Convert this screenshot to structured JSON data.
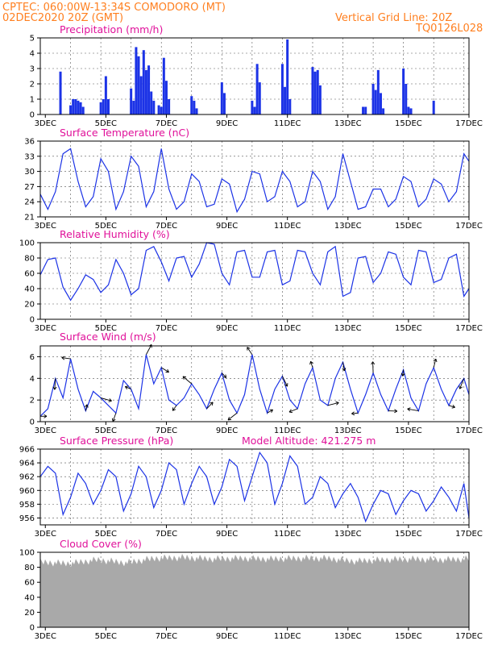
{
  "header": {
    "line1": "CPTEC:   060:00W-13:34S   COMODORO (MT)",
    "line2": "02DEC2020 20Z (GMT)",
    "right1": "Vertical Grid Line: 20Z",
    "right2": "TQ0126L028"
  },
  "colors": {
    "header": "#ff7f1f",
    "title": "#e0119a",
    "series": "#1c33e6",
    "cloud": "#a9a9a9"
  },
  "x_axis": {
    "start": "02DEC2020 20Z",
    "end": "17DEC2020 00Z",
    "tick_labels": [
      "3DEC",
      "5DEC",
      "7DEC",
      "9DEC",
      "11DEC",
      "13DEC",
      "15DEC",
      "17DEC"
    ]
  },
  "chart_data": [
    {
      "type": "bar",
      "title": "Precipitation (mm/h)",
      "ylim": [
        0,
        5
      ],
      "yticks": [
        0,
        1,
        2,
        3,
        4,
        5
      ],
      "x": [
        "03DEC 12Z",
        "03DEC 20Z",
        "03DEC 22Z",
        "04DEC 00Z",
        "04DEC 02Z",
        "04DEC 04Z",
        "04DEC 06Z",
        "04DEC 20Z",
        "04DEC 22Z",
        "05DEC 00Z",
        "05DEC 02Z",
        "05DEC 20Z",
        "05DEC 22Z",
        "06DEC 00Z",
        "06DEC 02Z",
        "06DEC 04Z",
        "06DEC 06Z",
        "06DEC 08Z",
        "06DEC 10Z",
        "06DEC 12Z",
        "06DEC 14Z",
        "06DEC 18Z",
        "06DEC 20Z",
        "06DEC 22Z",
        "07DEC 00Z",
        "07DEC 02Z",
        "07DEC 20Z",
        "07DEC 22Z",
        "08DEC 00Z",
        "08DEC 20Z",
        "08DEC 22Z",
        "09DEC 20Z",
        "09DEC 22Z",
        "10DEC 00Z",
        "10DEC 02Z",
        "10DEC 20Z",
        "10DEC 22Z",
        "11DEC 00Z",
        "11DEC 02Z",
        "11DEC 20Z",
        "11DEC 22Z",
        "12DEC 00Z",
        "12DEC 02Z",
        "13DEC 12Z",
        "13DEC 14Z",
        "13DEC 20Z",
        "13DEC 22Z",
        "14DEC 00Z",
        "14DEC 02Z",
        "14DEC 04Z",
        "14DEC 20Z",
        "14DEC 22Z",
        "15DEC 00Z",
        "15DEC 02Z",
        "15DEC 20Z"
      ],
      "values": [
        2.8,
        0.6,
        1.0,
        1.0,
        0.9,
        0.8,
        0.5,
        0.8,
        1.0,
        2.5,
        1.0,
        1.7,
        0.9,
        4.4,
        3.8,
        2.5,
        4.2,
        2.9,
        3.2,
        1.5,
        0.9,
        0.6,
        0.5,
        3.7,
        2.2,
        1.0,
        1.2,
        0.9,
        0.4,
        2.1,
        1.4,
        0.9,
        0.5,
        3.3,
        2.1,
        3.3,
        1.8,
        4.9,
        1.0,
        3.1,
        2.8,
        2.9,
        1.9,
        0.5,
        0.5,
        2.0,
        1.6,
        2.9,
        1.4,
        0.4,
        3.0,
        2.0,
        0.5,
        0.4,
        0.9
      ]
    },
    {
      "type": "line",
      "title": "Surface Temperature (nC)",
      "ylim": [
        21,
        36
      ],
      "yticks": [
        21,
        24,
        27,
        30,
        33,
        36
      ],
      "x": [
        "02DEC 20Z",
        "03DEC 02Z",
        "03DEC 08Z",
        "03DEC 14Z",
        "03DEC 20Z",
        "04DEC 02Z",
        "04DEC 08Z",
        "04DEC 14Z",
        "04DEC 20Z",
        "05DEC 02Z",
        "05DEC 08Z",
        "05DEC 14Z",
        "05DEC 20Z",
        "06DEC 02Z",
        "06DEC 08Z",
        "06DEC 14Z",
        "06DEC 20Z",
        "07DEC 02Z",
        "07DEC 08Z",
        "07DEC 14Z",
        "07DEC 20Z",
        "08DEC 02Z",
        "08DEC 08Z",
        "08DEC 14Z",
        "08DEC 20Z",
        "09DEC 02Z",
        "09DEC 08Z",
        "09DEC 14Z",
        "09DEC 20Z",
        "10DEC 02Z",
        "10DEC 08Z",
        "10DEC 14Z",
        "10DEC 20Z",
        "11DEC 02Z",
        "11DEC 08Z",
        "11DEC 14Z",
        "11DEC 20Z",
        "12DEC 02Z",
        "12DEC 08Z",
        "12DEC 14Z",
        "12DEC 20Z",
        "13DEC 02Z",
        "13DEC 08Z",
        "13DEC 14Z",
        "13DEC 20Z",
        "14DEC 02Z",
        "14DEC 08Z",
        "14DEC 14Z",
        "14DEC 20Z",
        "15DEC 02Z",
        "15DEC 08Z",
        "15DEC 14Z",
        "15DEC 20Z",
        "16DEC 02Z",
        "16DEC 08Z",
        "16DEC 14Z",
        "16DEC 20Z",
        "17DEC 00Z"
      ],
      "values": [
        25.5,
        22.5,
        26,
        33.5,
        34.5,
        28,
        23,
        25,
        32.5,
        30,
        22.5,
        26,
        33,
        31,
        23,
        26,
        34.5,
        26.5,
        22.5,
        24,
        29.5,
        28,
        23,
        23.5,
        28.5,
        27.5,
        22,
        24.5,
        30,
        29.5,
        24,
        25,
        30,
        28,
        23,
        24,
        30,
        28,
        22.5,
        25,
        33.5,
        28,
        22.5,
        23,
        26.5,
        26.5,
        23,
        24.5,
        29,
        28,
        23,
        24.5,
        28.5,
        27.5,
        24,
        26,
        33.5,
        32
      ]
    },
    {
      "type": "line",
      "title": "Relative Humidity (%)",
      "ylim": [
        0,
        100
      ],
      "yticks": [
        0,
        20,
        40,
        60,
        80,
        100
      ],
      "x": [
        "02DEC 20Z",
        "03DEC 02Z",
        "03DEC 08Z",
        "03DEC 14Z",
        "03DEC 20Z",
        "04DEC 02Z",
        "04DEC 08Z",
        "04DEC 14Z",
        "04DEC 20Z",
        "05DEC 02Z",
        "05DEC 08Z",
        "05DEC 14Z",
        "05DEC 20Z",
        "06DEC 02Z",
        "06DEC 08Z",
        "06DEC 14Z",
        "06DEC 20Z",
        "07DEC 02Z",
        "07DEC 08Z",
        "07DEC 14Z",
        "07DEC 20Z",
        "08DEC 02Z",
        "08DEC 08Z",
        "08DEC 14Z",
        "08DEC 20Z",
        "09DEC 02Z",
        "09DEC 08Z",
        "09DEC 14Z",
        "09DEC 20Z",
        "10DEC 02Z",
        "10DEC 08Z",
        "10DEC 14Z",
        "10DEC 20Z",
        "11DEC 02Z",
        "11DEC 08Z",
        "11DEC 14Z",
        "11DEC 20Z",
        "12DEC 02Z",
        "12DEC 08Z",
        "12DEC 14Z",
        "12DEC 20Z",
        "13DEC 02Z",
        "13DEC 08Z",
        "13DEC 14Z",
        "13DEC 20Z",
        "14DEC 02Z",
        "14DEC 08Z",
        "14DEC 14Z",
        "14DEC 20Z",
        "15DEC 02Z",
        "15DEC 08Z",
        "15DEC 14Z",
        "15DEC 20Z",
        "16DEC 02Z",
        "16DEC 08Z",
        "16DEC 14Z",
        "16DEC 20Z",
        "17DEC 00Z"
      ],
      "values": [
        58,
        78,
        80,
        42,
        25,
        40,
        58,
        52,
        35,
        45,
        78,
        60,
        32,
        40,
        90,
        95,
        75,
        50,
        80,
        82,
        55,
        72,
        100,
        98,
        60,
        45,
        88,
        90,
        55,
        55,
        88,
        90,
        45,
        50,
        90,
        88,
        60,
        45,
        88,
        95,
        30,
        35,
        80,
        82,
        48,
        60,
        88,
        85,
        55,
        45,
        90,
        88,
        48,
        52,
        80,
        85,
        30,
        40
      ]
    },
    {
      "type": "line",
      "title": "Surface Wind (m/s)",
      "ylim": [
        0,
        7
      ],
      "yticks": [
        0,
        2,
        4,
        6
      ],
      "x": [
        "02DEC 20Z",
        "03DEC 02Z",
        "03DEC 08Z",
        "03DEC 14Z",
        "03DEC 20Z",
        "04DEC 02Z",
        "04DEC 08Z",
        "04DEC 14Z",
        "04DEC 20Z",
        "05DEC 02Z",
        "05DEC 08Z",
        "05DEC 14Z",
        "05DEC 20Z",
        "06DEC 02Z",
        "06DEC 08Z",
        "06DEC 14Z",
        "06DEC 20Z",
        "07DEC 02Z",
        "07DEC 08Z",
        "07DEC 14Z",
        "07DEC 20Z",
        "08DEC 02Z",
        "08DEC 08Z",
        "08DEC 14Z",
        "08DEC 20Z",
        "09DEC 02Z",
        "09DEC 08Z",
        "09DEC 14Z",
        "09DEC 20Z",
        "10DEC 02Z",
        "10DEC 08Z",
        "10DEC 14Z",
        "10DEC 20Z",
        "11DEC 02Z",
        "11DEC 08Z",
        "11DEC 14Z",
        "11DEC 20Z",
        "12DEC 02Z",
        "12DEC 08Z",
        "12DEC 14Z",
        "12DEC 20Z",
        "13DEC 02Z",
        "13DEC 08Z",
        "13DEC 14Z",
        "13DEC 20Z",
        "14DEC 02Z",
        "14DEC 08Z",
        "14DEC 14Z",
        "14DEC 20Z",
        "15DEC 02Z",
        "15DEC 08Z",
        "15DEC 14Z",
        "15DEC 20Z",
        "16DEC 02Z",
        "16DEC 08Z",
        "16DEC 14Z",
        "16DEC 20Z",
        "17DEC 00Z"
      ],
      "values": [
        0.5,
        1.2,
        4.0,
        2.2,
        5.8,
        3.0,
        1.0,
        2.8,
        2.2,
        1.5,
        0.8,
        3.8,
        3.0,
        1.2,
        6.2,
        3.5,
        5.0,
        2.0,
        1.5,
        2.2,
        3.5,
        2.5,
        1.2,
        3.0,
        4.5,
        2.0,
        0.8,
        2.5,
        6.2,
        3.0,
        0.8,
        3.0,
        4.2,
        2.0,
        1.2,
        3.5,
        5.0,
        2.0,
        1.5,
        4.0,
        5.5,
        3.0,
        0.8,
        2.5,
        4.5,
        2.5,
        1.0,
        3.0,
        4.8,
        2.2,
        1.0,
        3.5,
        5.0,
        3.0,
        1.5,
        3.0,
        4.0,
        2.5
      ],
      "arrows": "direction arrows shown at each sample"
    },
    {
      "type": "line",
      "title": "Surface Pressure (hPa)",
      "subtitle": "Model Altitude: 421.275 m",
      "ylim": [
        955,
        966
      ],
      "yticks": [
        956,
        958,
        960,
        962,
        964,
        966
      ],
      "x": [
        "02DEC 20Z",
        "03DEC 02Z",
        "03DEC 08Z",
        "03DEC 14Z",
        "03DEC 20Z",
        "04DEC 02Z",
        "04DEC 08Z",
        "04DEC 14Z",
        "04DEC 20Z",
        "05DEC 02Z",
        "05DEC 08Z",
        "05DEC 14Z",
        "05DEC 20Z",
        "06DEC 02Z",
        "06DEC 08Z",
        "06DEC 14Z",
        "06DEC 20Z",
        "07DEC 02Z",
        "07DEC 08Z",
        "07DEC 14Z",
        "07DEC 20Z",
        "08DEC 02Z",
        "08DEC 08Z",
        "08DEC 14Z",
        "08DEC 20Z",
        "09DEC 02Z",
        "09DEC 08Z",
        "09DEC 14Z",
        "09DEC 20Z",
        "10DEC 02Z",
        "10DEC 08Z",
        "10DEC 14Z",
        "10DEC 20Z",
        "11DEC 02Z",
        "11DEC 08Z",
        "11DEC 14Z",
        "11DEC 20Z",
        "12DEC 02Z",
        "12DEC 08Z",
        "12DEC 14Z",
        "12DEC 20Z",
        "13DEC 02Z",
        "13DEC 08Z",
        "13DEC 14Z",
        "13DEC 20Z",
        "14DEC 02Z",
        "14DEC 08Z",
        "14DEC 14Z",
        "14DEC 20Z",
        "15DEC 02Z",
        "15DEC 08Z",
        "15DEC 14Z",
        "15DEC 20Z",
        "16DEC 02Z",
        "16DEC 08Z",
        "16DEC 14Z",
        "16DEC 20Z",
        "17DEC 00Z"
      ],
      "values": [
        962,
        963.5,
        962.5,
        956.5,
        959,
        962.5,
        961,
        958,
        960,
        963,
        962,
        957,
        959.5,
        963.5,
        962,
        957.5,
        960,
        964,
        963,
        958,
        961,
        963.5,
        962,
        958,
        960.5,
        964.5,
        963.5,
        958.5,
        962,
        965.5,
        964,
        958,
        961,
        965,
        963.5,
        958,
        959,
        962,
        961,
        957.5,
        959.5,
        961,
        959,
        955.5,
        958,
        960,
        959.5,
        956.5,
        958.5,
        960,
        959.5,
        957,
        958.5,
        960.5,
        959,
        957,
        961,
        956
      ]
    },
    {
      "type": "area",
      "title": "Cloud Cover (%)",
      "ylim": [
        0,
        100
      ],
      "yticks": [
        0,
        20,
        40,
        60,
        80,
        100
      ],
      "x": [
        "02DEC 20Z",
        "03DEC 20Z",
        "04DEC 20Z",
        "05DEC 20Z",
        "06DEC 20Z",
        "07DEC 20Z",
        "08DEC 20Z",
        "09DEC 20Z",
        "10DEC 20Z",
        "11DEC 20Z",
        "12DEC 20Z",
        "13DEC 20Z",
        "14DEC 20Z",
        "15DEC 20Z",
        "16DEC 20Z",
        "17DEC 00Z"
      ],
      "values": [
        92,
        90,
        95,
        91,
        97,
        98,
        96,
        97,
        96,
        97,
        97,
        93,
        95,
        96,
        95,
        96
      ]
    }
  ]
}
